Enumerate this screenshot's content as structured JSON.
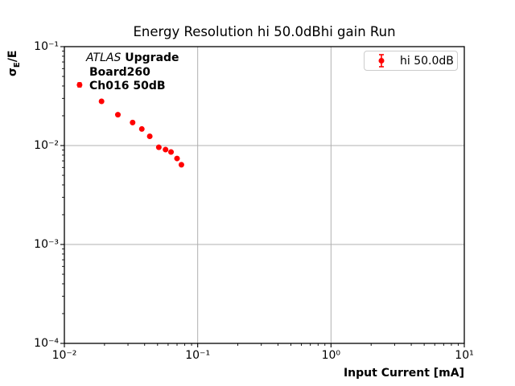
{
  "title": "Energy Resolution hi 50.0dBhi gain Run",
  "annotation": {
    "atlas": "ATLAS",
    "line1_rest": "Upgrade",
    "line2": "Board260",
    "line3": "Ch016 50dB"
  },
  "legend": {
    "label": "hi 50.0dB"
  },
  "colors": {
    "marker": "#ff0000",
    "grid": "#b0b0b0",
    "spine": "#000000",
    "legend_border": "#cccccc"
  },
  "ylabel_parts": {
    "sigma": "σ",
    "sub": "E",
    "rest": "/E"
  },
  "chart_data": {
    "type": "scatter",
    "title": "Energy Resolution hi 50.0dBhi gain Run",
    "xlabel": "Input Current [mA]",
    "ylabel": "σ_E/E",
    "xscale": "log",
    "yscale": "log",
    "xlim": [
      0.01,
      10
    ],
    "ylim": [
      0.0001,
      0.1
    ],
    "grid": true,
    "legend_position": "upper right",
    "xticks": {
      "values": [
        0.01,
        0.1,
        1,
        10
      ],
      "labels": [
        "10⁻²",
        "10⁻¹",
        "10⁰",
        "10¹"
      ]
    },
    "yticks": {
      "values": [
        0.1,
        0.01,
        0.001,
        0.0001
      ],
      "labels": [
        "10⁻¹",
        "10⁻²",
        "10⁻³",
        "10⁻⁴"
      ]
    },
    "series": [
      {
        "name": "hi 50.0dB",
        "color": "#ff0000",
        "marker": "circle",
        "x": [
          0.013,
          0.019,
          0.0252,
          0.0325,
          0.0381,
          0.0437,
          0.0511,
          0.0574,
          0.0631,
          0.07,
          0.0755
        ],
        "y": [
          0.0411,
          0.028,
          0.0205,
          0.0171,
          0.0147,
          0.0124,
          0.0096,
          0.0091,
          0.0086,
          0.0074,
          0.0064
        ],
        "yerr": [
          0.002,
          0,
          0,
          0,
          0,
          0,
          0,
          0,
          0,
          0,
          0
        ]
      }
    ]
  }
}
